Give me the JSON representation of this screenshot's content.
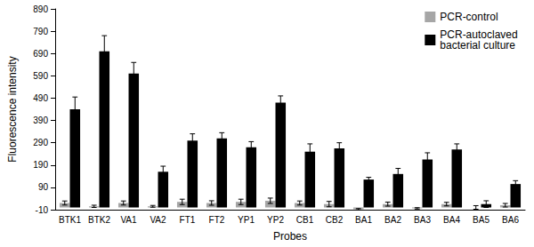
{
  "chart_data": {
    "type": "bar",
    "x_label": "Probes",
    "y_label": "Fluorescence intensity",
    "categories": [
      "BTK1",
      "BTK2",
      "VA1",
      "VA2",
      "FT1",
      "FT2",
      "YP1",
      "YP2",
      "CB1",
      "CB2",
      "BA1",
      "BA2",
      "BA3",
      "BA4",
      "BA5",
      "BA6"
    ],
    "series": [
      {
        "name": "PCR-control",
        "color": "#a6a6a6",
        "values": [
          20,
          5,
          20,
          5,
          25,
          20,
          25,
          30,
          20,
          15,
          -8,
          15,
          -4,
          15,
          0,
          10
        ],
        "errors": [
          9,
          5,
          9,
          4,
          12,
          10,
          12,
          12,
          9,
          12,
          3,
          9,
          3,
          8,
          8,
          8
        ]
      },
      {
        "name": "PCR-autoclaved bacterial culture",
        "color": "#000000",
        "values": [
          440,
          700,
          600,
          160,
          300,
          310,
          270,
          470,
          250,
          265,
          125,
          150,
          215,
          260,
          15,
          105
        ],
        "errors": [
          55,
          70,
          50,
          25,
          30,
          25,
          25,
          30,
          35,
          25,
          10,
          25,
          30,
          25,
          15,
          15
        ]
      }
    ],
    "ylim": [
      -10,
      890
    ],
    "yticks": [
      -10,
      90,
      190,
      290,
      390,
      490,
      590,
      690,
      790,
      890
    ],
    "grid": false,
    "legend": "upper right"
  }
}
